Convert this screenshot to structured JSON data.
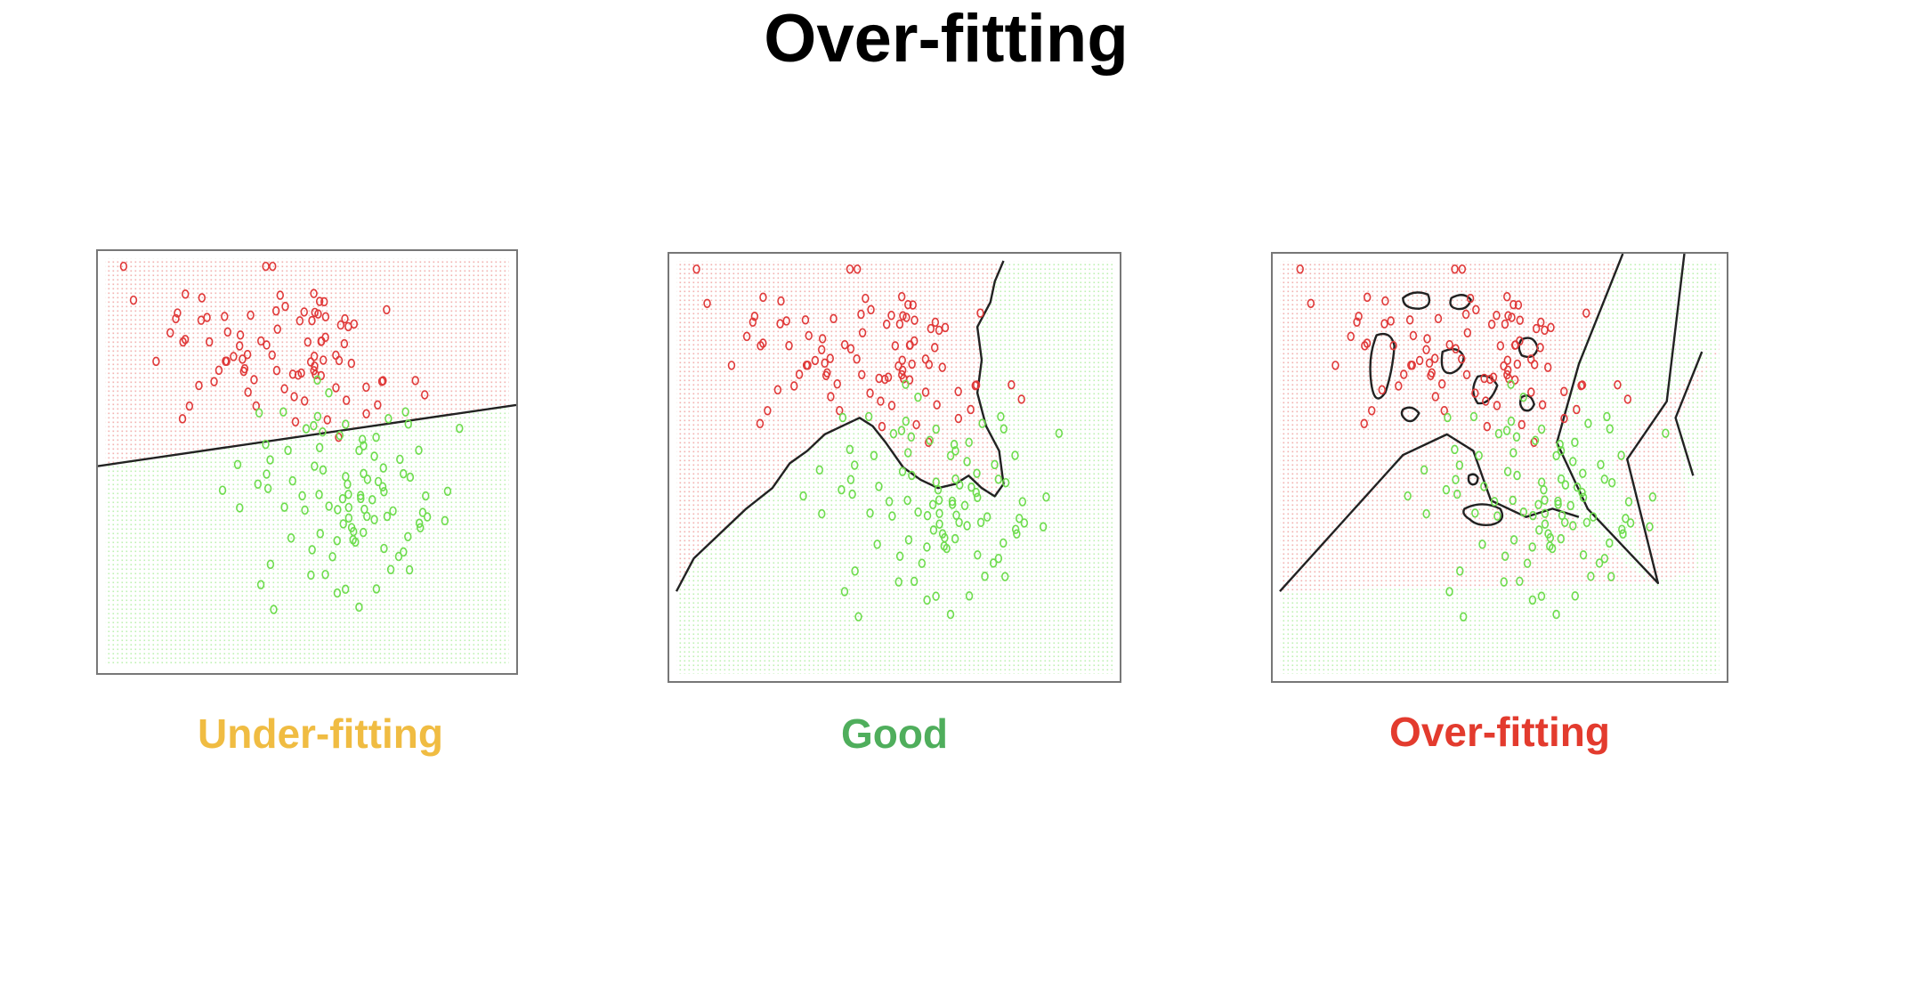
{
  "slide": {
    "title": "Over-fitting"
  },
  "panels": [
    {
      "name": "under-fitting",
      "caption": "Under-fitting",
      "caption_color": "#F0BC42"
    },
    {
      "name": "good",
      "caption": "Good",
      "caption_color": "#4FAE5C"
    },
    {
      "name": "over-fitting",
      "caption": "Over-fitting",
      "caption_color": "#E33B2E"
    }
  ],
  "colors": {
    "class_red": "#E03A3A",
    "class_green": "#6EDC4E",
    "region_red": "#F4B0B0",
    "region_green": "#BDF0B0",
    "boundary": "#222222"
  },
  "point_glyph": "o"
}
